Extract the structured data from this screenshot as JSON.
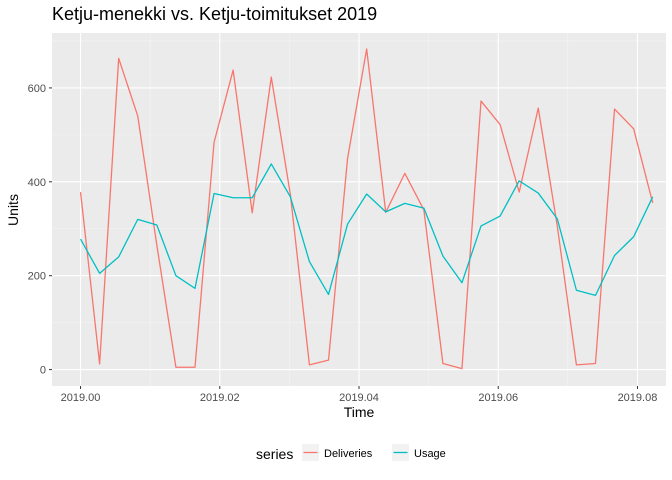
{
  "chart_data": {
    "type": "line",
    "title": "Ketju-menekki vs. Ketju-toimitukset 2019",
    "xlabel": "Time",
    "ylabel": "Units",
    "xlim": [
      2018.9959,
      2019.0841
    ],
    "ylim": [
      -35,
      717
    ],
    "x_ticks": [
      2019.0,
      2019.02,
      2019.04,
      2019.06,
      2019.08
    ],
    "x_tick_labels": [
      "2019.00",
      "2019.02",
      "2019.04",
      "2019.06",
      "2019.08"
    ],
    "y_ticks": [
      0,
      200,
      400,
      600
    ],
    "y_tick_labels": [
      "0",
      "200",
      "400",
      "600"
    ],
    "grid": true,
    "legend": {
      "title": "series",
      "position": "bottom"
    },
    "x": [
      2019.0,
      2019.00274,
      2019.00548,
      2019.00822,
      2019.01096,
      2019.0137,
      2019.01644,
      2019.01918,
      2019.02192,
      2019.02466,
      2019.0274,
      2019.03014,
      2019.03288,
      2019.03562,
      2019.03836,
      2019.0411,
      2019.04384,
      2019.04658,
      2019.04932,
      2019.05205,
      2019.05479,
      2019.05753,
      2019.06027,
      2019.06301,
      2019.06575,
      2019.06849,
      2019.07123,
      2019.07397,
      2019.07671,
      2019.07945,
      2019.08219
    ],
    "series": [
      {
        "name": "Deliveries",
        "color": "#F8766D",
        "values": [
          378,
          12,
          663,
          540,
          265,
          5,
          5,
          484,
          638,
          334,
          623,
          373,
          10,
          20,
          450,
          683,
          335,
          418,
          340,
          13,
          2,
          572,
          522,
          378,
          557,
          305,
          10,
          13,
          555,
          513,
          355
        ]
      },
      {
        "name": "Usage",
        "color": "#00BFC4",
        "values": [
          278,
          205,
          240,
          320,
          308,
          200,
          173,
          375,
          366,
          366,
          438,
          368,
          230,
          160,
          310,
          374,
          336,
          354,
          344,
          242,
          185,
          306,
          327,
          402,
          376,
          321,
          169,
          158,
          243,
          283,
          368
        ]
      }
    ]
  }
}
